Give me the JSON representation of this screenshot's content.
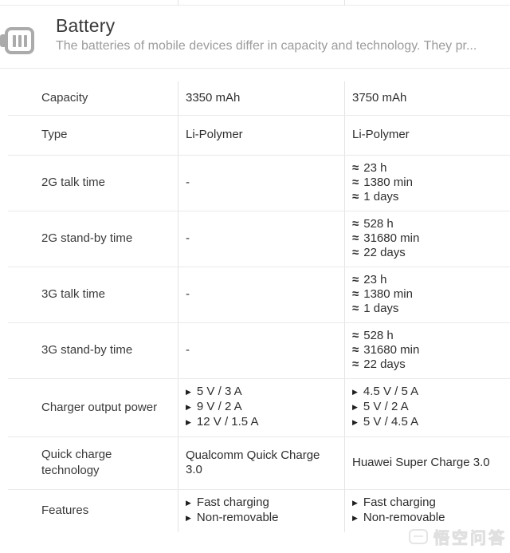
{
  "header": {
    "title": "Battery",
    "subtitle": "The batteries of mobile devices differ in capacity and technology. They pr...",
    "icon": "battery-icon"
  },
  "table": {
    "columns": [
      "spec-name",
      "device-a-value",
      "device-b-value"
    ],
    "rows": [
      {
        "label": "Capacity",
        "cells": [
          [
            {
              "text": "3350 mAh"
            }
          ],
          [
            {
              "text": "3750 mAh"
            }
          ]
        ]
      },
      {
        "label": "Type",
        "cells": [
          [
            {
              "text": "Li-Polymer"
            }
          ],
          [
            {
              "text": "Li-Polymer"
            }
          ]
        ]
      },
      {
        "label": "2G talk time",
        "cells": [
          [
            {
              "text": "-"
            }
          ],
          [
            {
              "prefix": "≈",
              "text": "23 h"
            },
            {
              "prefix": "≈",
              "text": "1380 min"
            },
            {
              "prefix": "≈",
              "text": "1 days"
            }
          ]
        ]
      },
      {
        "label": "2G stand-by time",
        "cells": [
          [
            {
              "text": "-"
            }
          ],
          [
            {
              "prefix": "≈",
              "text": "528 h"
            },
            {
              "prefix": "≈",
              "text": "31680 min"
            },
            {
              "prefix": "≈",
              "text": "22 days"
            }
          ]
        ]
      },
      {
        "label": "3G talk time",
        "cells": [
          [
            {
              "text": "-"
            }
          ],
          [
            {
              "prefix": "≈",
              "text": "23 h"
            },
            {
              "prefix": "≈",
              "text": "1380 min"
            },
            {
              "prefix": "≈",
              "text": "1 days"
            }
          ]
        ]
      },
      {
        "label": "3G stand-by time",
        "cells": [
          [
            {
              "text": "-"
            }
          ],
          [
            {
              "prefix": "≈",
              "text": "528 h"
            },
            {
              "prefix": "≈",
              "text": "31680 min"
            },
            {
              "prefix": "≈",
              "text": "22 days"
            }
          ]
        ]
      },
      {
        "label": "Charger output power",
        "cells": [
          [
            {
              "prefix": "▶",
              "text": "5 V / 3 A"
            },
            {
              "prefix": "▶",
              "text": "9 V / 2 A"
            },
            {
              "prefix": "▶",
              "text": "12 V / 1.5 A"
            }
          ],
          [
            {
              "prefix": "▶",
              "text": "4.5 V / 5 A"
            },
            {
              "prefix": "▶",
              "text": "5 V / 2 A"
            },
            {
              "prefix": "▶",
              "text": "5 V / 4.5 A"
            }
          ]
        ]
      },
      {
        "label": "Quick charge technology",
        "cells": [
          [
            {
              "text": "Qualcomm Quick Charge 3.0"
            }
          ],
          [
            {
              "text": "Huawei Super Charge 3.0"
            }
          ]
        ]
      },
      {
        "label": "Features",
        "cells": [
          [
            {
              "prefix": "▶",
              "text": "Fast charging"
            },
            {
              "prefix": "▶",
              "text": "Non-removable"
            }
          ],
          [
            {
              "prefix": "▶",
              "text": "Fast charging"
            },
            {
              "prefix": "▶",
              "text": "Non-removable"
            }
          ]
        ]
      }
    ]
  },
  "watermark": {
    "text": "悟空问答"
  },
  "icons": {
    "battery": "battery-icon",
    "approx": "≈",
    "bullet_arrow": "▶"
  },
  "colors": {
    "background": "#ffffff",
    "text_primary": "#2e2e2e",
    "text_label": "#3a3a3a",
    "text_secondary": "#9c9c9c",
    "divider": "#e9e9e9",
    "icon_grey": "#ababab",
    "watermark": "#e0e0e0"
  }
}
